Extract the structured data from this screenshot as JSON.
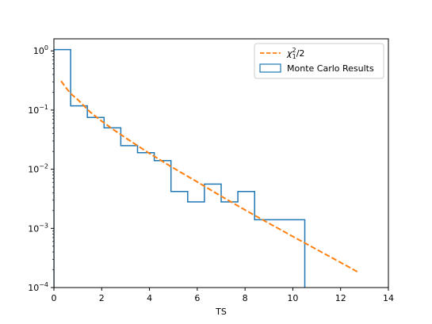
{
  "chart_data": {
    "type": "line",
    "xlabel": "TS",
    "ylabel": "",
    "title": "",
    "xlim": [
      0,
      14
    ],
    "ylim": [
      0.0001,
      1.6
    ],
    "yscale": "log",
    "grid": false,
    "legend_position": "top-right",
    "x_ticks": [
      0,
      2,
      4,
      6,
      8,
      10,
      12,
      14
    ],
    "y_ticks": [
      {
        "value": 0.0001,
        "base": "10",
        "exp": "−4"
      },
      {
        "value": 0.001,
        "base": "10",
        "exp": "−3"
      },
      {
        "value": 0.01,
        "base": "10",
        "exp": "−2"
      },
      {
        "value": 0.1,
        "base": "10",
        "exp": "−1"
      },
      {
        "value": 1,
        "base": "10",
        "exp": "0"
      }
    ],
    "series": [
      {
        "name": "χ²₁/2",
        "kind": "dashed-line",
        "color": "#ff7f0e",
        "x": [
          0.3,
          0.5,
          0.7,
          1.0,
          1.5,
          2.0,
          2.5,
          3.0,
          3.5,
          4.0,
          5.0,
          6.0,
          7.0,
          8.0,
          9.0,
          10.0,
          11.0,
          12.0,
          12.7
        ],
        "y": [
          0.31,
          0.24,
          0.19,
          0.15,
          0.094,
          0.065,
          0.0465,
          0.034,
          0.025,
          0.0185,
          0.0105,
          0.0061,
          0.0035,
          0.00205,
          0.00122,
          0.00073,
          0.00044,
          0.000265,
          0.000185
        ]
      },
      {
        "name": "Monte Carlo Results",
        "kind": "step-histogram",
        "color": "#1f77b4",
        "bin_edges": [
          0,
          0.7,
          1.4,
          2.1,
          2.8,
          3.5,
          4.2,
          4.9,
          5.6,
          6.3,
          7.0,
          7.7,
          8.4,
          9.1,
          9.8,
          10.5
        ],
        "values": [
          1.05,
          0.118,
          0.075,
          0.05,
          0.025,
          0.019,
          0.014,
          0.0042,
          0.0028,
          0.0056,
          0.0028,
          0.0042,
          0.0014,
          0.0014,
          0.0014
        ]
      }
    ]
  }
}
